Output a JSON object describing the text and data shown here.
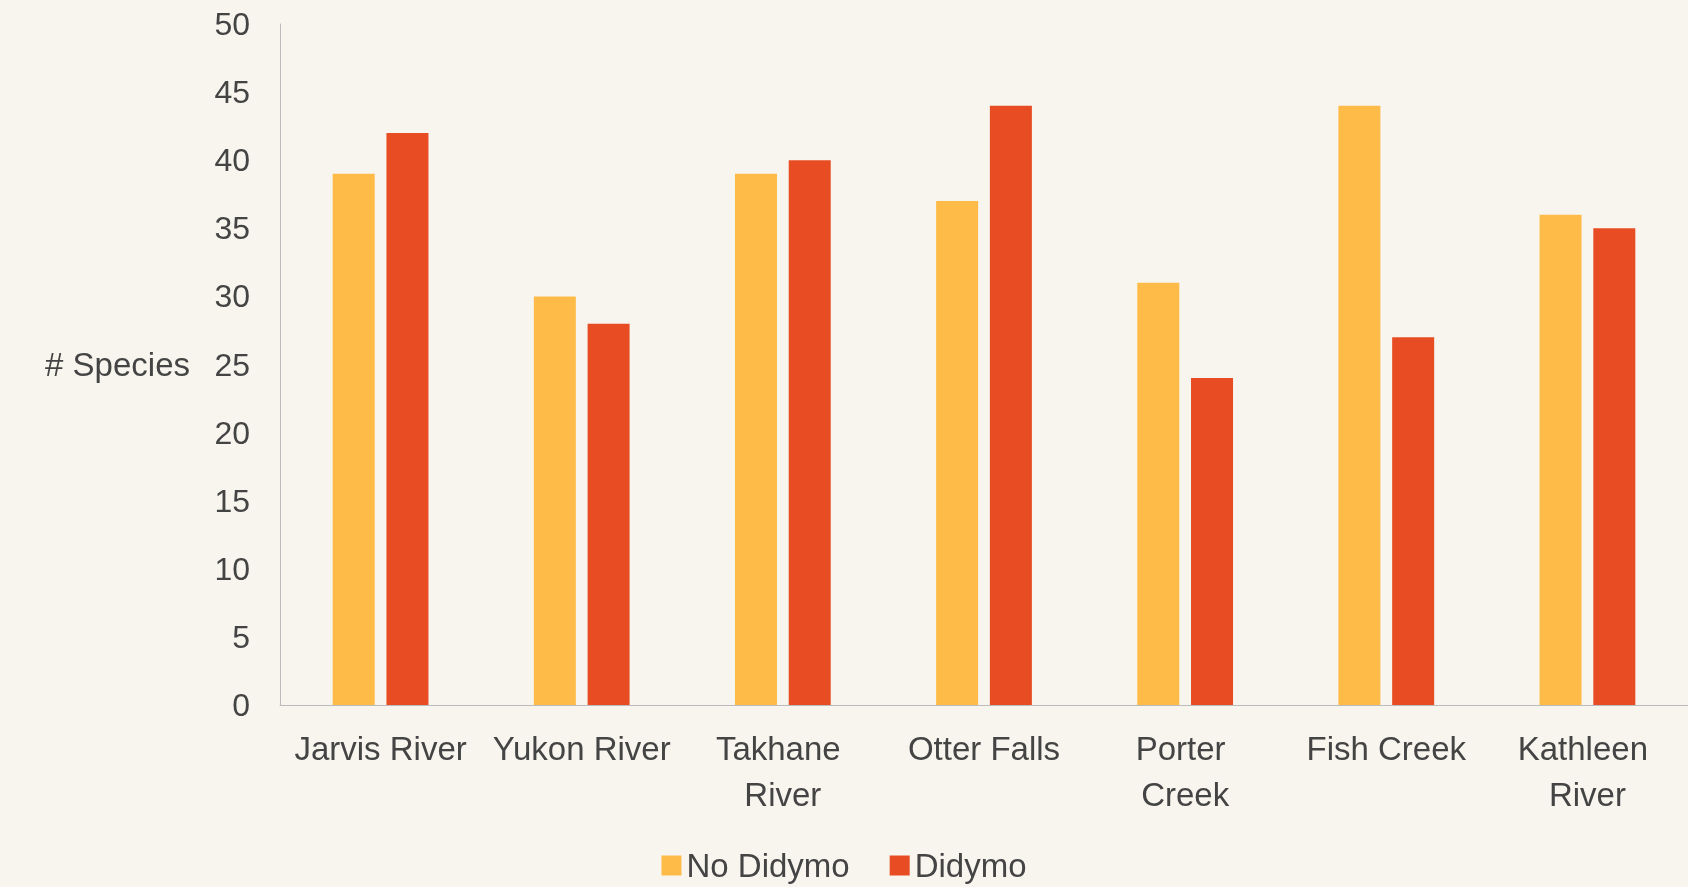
{
  "chart_data": {
    "type": "bar",
    "ylabel": "# Species",
    "categories": [
      "Jarvis River",
      "Yukon River",
      "Takhane River",
      "Otter Falls",
      "Porter Creek",
      "Fish Creek",
      "Kathleen River"
    ],
    "series": [
      {
        "name": "No Didymo",
        "color": "#ffbb48",
        "values": [
          39,
          30,
          39,
          37,
          31,
          44,
          36
        ]
      },
      {
        "name": "Didymo",
        "color": "#e84c22",
        "values": [
          42,
          28,
          40,
          44,
          24,
          27,
          35
        ]
      }
    ],
    "ylim": [
      0,
      50
    ],
    "yticks": [
      0,
      5,
      10,
      15,
      20,
      25,
      30,
      35,
      40,
      45,
      50
    ],
    "grid": false,
    "legend": "bottom"
  }
}
